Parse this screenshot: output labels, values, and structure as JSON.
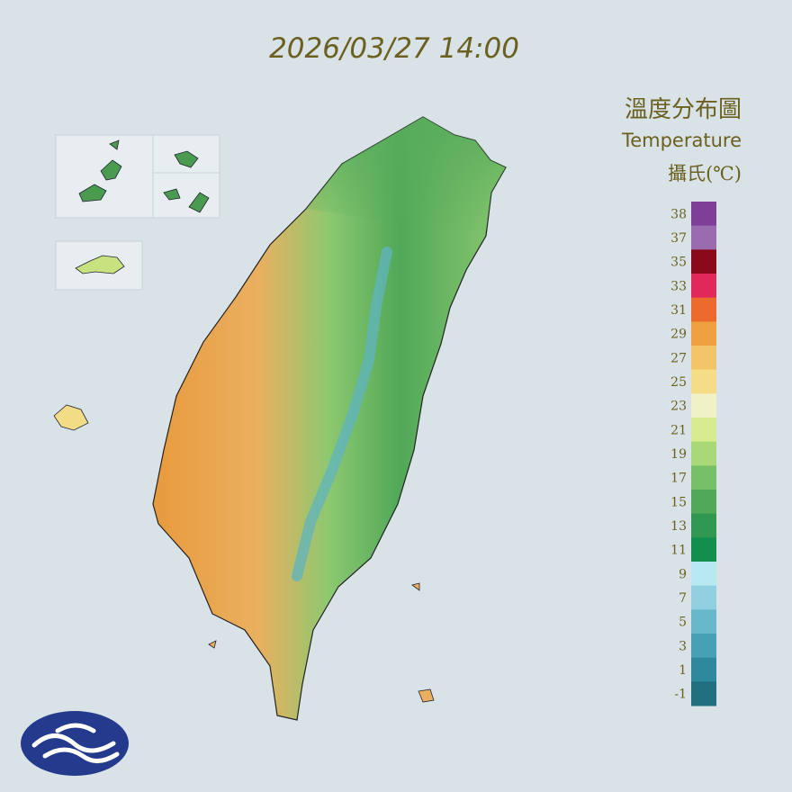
{
  "timestamp": "2026/03/27 14:00",
  "legend": {
    "title": "溫度分布圖",
    "subtitle": "Temperature",
    "unit": "攝氏(℃)",
    "labels": [
      38,
      37,
      35,
      33,
      31,
      29,
      27,
      25,
      23,
      21,
      19,
      17,
      15,
      13,
      11,
      9,
      7,
      5,
      3,
      1,
      -1
    ],
    "colors": [
      "#7f3f98",
      "#9b6bb0",
      "#8b0a1a",
      "#e0285a",
      "#ec6a2c",
      "#f0a040",
      "#f3c468",
      "#f5dc86",
      "#eef2c6",
      "#d8eb90",
      "#a8d878",
      "#78c068",
      "#50a858",
      "#309850",
      "#10904c",
      "#b8e8f0",
      "#90d0e0",
      "#68b8cc",
      "#48a0b4",
      "#30889c",
      "#207080"
    ]
  }
}
